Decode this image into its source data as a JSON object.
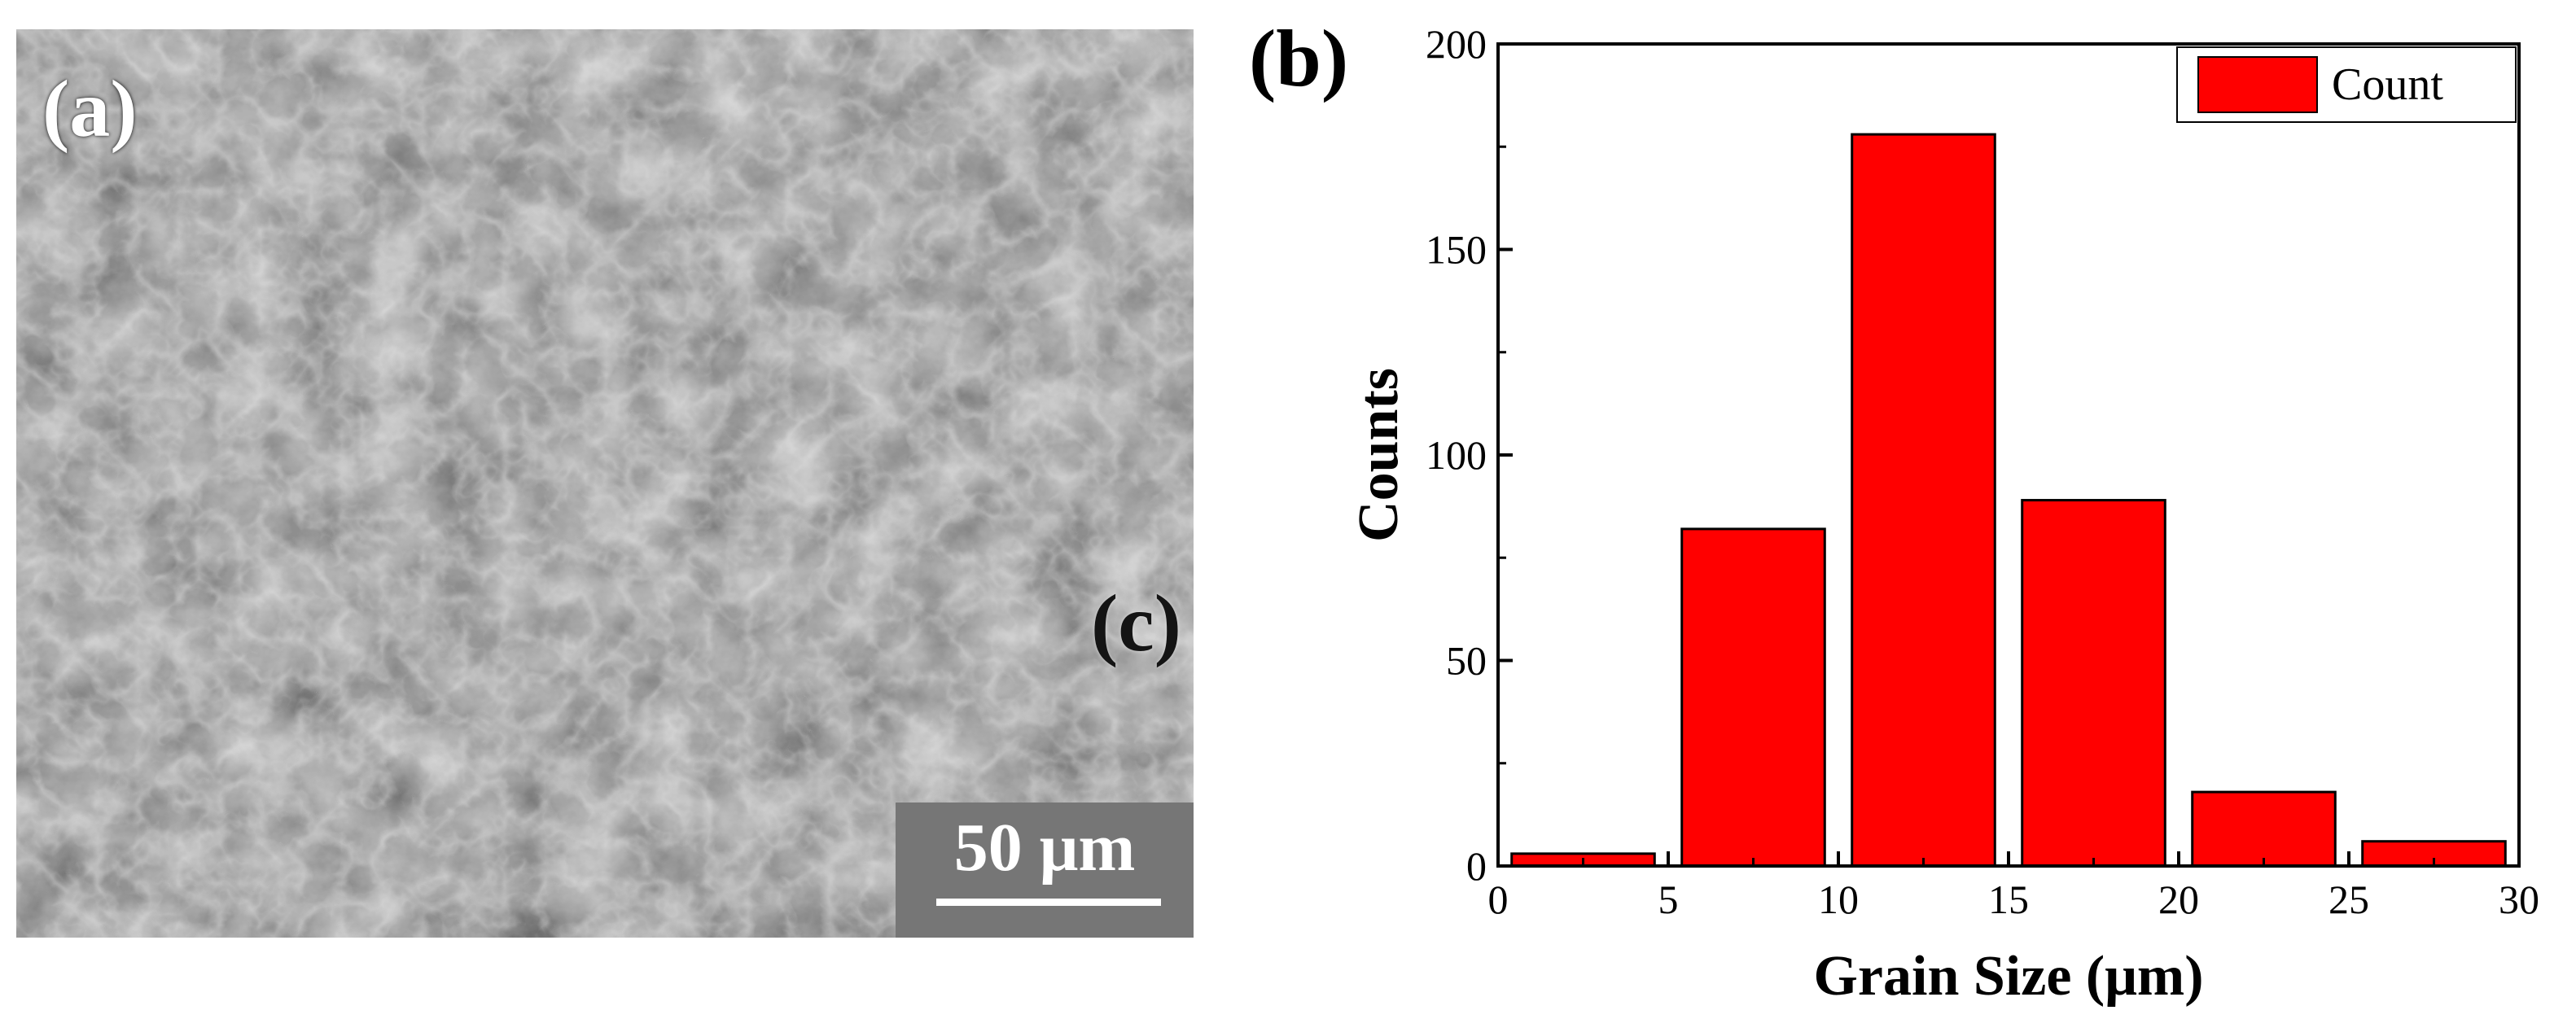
{
  "panel_a": {
    "label": "(a)",
    "inset_label": "(c)",
    "scale_bar": "50 μm"
  },
  "panel_b": {
    "label": "(b)"
  },
  "colors": {
    "bar": "#ff0000",
    "axis": "#000000"
  },
  "chart_data": {
    "type": "bar",
    "bin_width": 5,
    "x": [
      2.5,
      7.5,
      12.5,
      17.5,
      22.5,
      27.5
    ],
    "series": [
      {
        "name": "Count",
        "values": [
          3,
          82,
          178,
          89,
          18,
          6
        ]
      }
    ],
    "xlabel": "Grain Size  (μm)",
    "ylabel": "Counts",
    "xlim": [
      0,
      30
    ],
    "ylim": [
      0,
      200
    ],
    "xticks": [
      "0",
      "5",
      "10",
      "15",
      "20",
      "25",
      "30"
    ],
    "yticks": [
      "0",
      "50",
      "100",
      "150",
      "200"
    ],
    "grid": false,
    "legend_position": "top-right"
  }
}
